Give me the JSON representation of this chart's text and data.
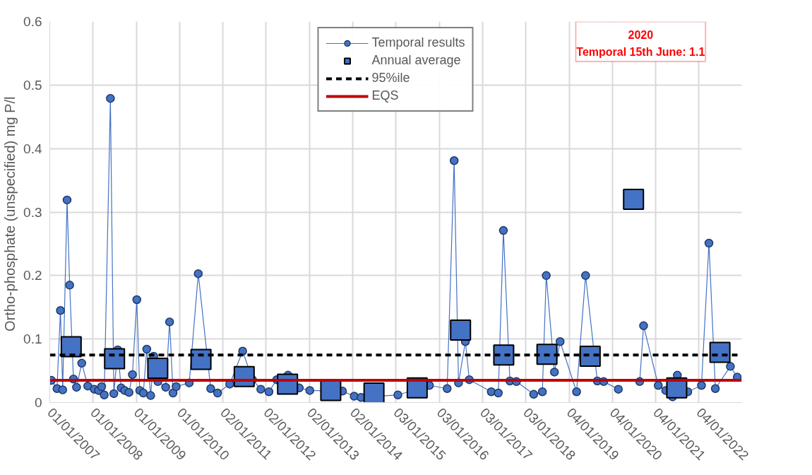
{
  "chart_data": {
    "type": "line",
    "ylabel": "Ortho-phosphate (unspecified)  mg P/l",
    "xlim": [
      "2007-01-01",
      "2023-01-01"
    ],
    "ylim": [
      0,
      0.6
    ],
    "yticks": [
      0,
      0.1,
      0.2,
      0.3,
      0.4,
      0.5,
      0.6
    ],
    "xticks": [
      {
        "value": "2007-01-01",
        "label": "01/01/2007"
      },
      {
        "value": "2008-01-01",
        "label": "01/01/2008"
      },
      {
        "value": "2009-01-01",
        "label": "01/01/2009"
      },
      {
        "value": "2010-01-01",
        "label": "01/01/2010"
      },
      {
        "value": "2011-01-02",
        "label": "02/01/2011"
      },
      {
        "value": "2012-01-02",
        "label": "02/01/2012"
      },
      {
        "value": "2013-01-02",
        "label": "02/01/2013"
      },
      {
        "value": "2014-01-02",
        "label": "02/01/2014"
      },
      {
        "value": "2015-01-03",
        "label": "03/01/2015"
      },
      {
        "value": "2016-01-03",
        "label": "03/01/2016"
      },
      {
        "value": "2017-01-03",
        "label": "03/01/2017"
      },
      {
        "value": "2018-01-03",
        "label": "03/01/2018"
      },
      {
        "value": "2019-01-04",
        "label": "04/01/2019"
      },
      {
        "value": "2020-01-04",
        "label": "04/01/2020"
      },
      {
        "value": "2021-01-04",
        "label": "04/01/2021"
      },
      {
        "value": "2022-01-04",
        "label": "04/01/2022"
      }
    ],
    "grid": true,
    "legend": "top",
    "series": [
      {
        "name": "Temporal results",
        "marker": "circle",
        "color": "#4472c4",
        "x": [
          "2007-01-15",
          "2007-03-03",
          "2007-04-01",
          "2007-04-20",
          "2007-05-27",
          "2007-06-18",
          "2007-07-20",
          "2007-08-15",
          "2007-09-28",
          "2007-11-18",
          "2008-01-12",
          "2008-02-17",
          "2008-03-14",
          "2008-04-05",
          "2008-05-27",
          "2008-06-25",
          "2008-07-28",
          "2008-08-26",
          "2008-09-24",
          "2008-10-31",
          "2008-11-29",
          "2009-01-05",
          "2009-01-30",
          "2009-03-01",
          "2009-03-30",
          "2009-05-02",
          "2009-05-27",
          "2009-07-02",
          "2009-09-06",
          "2009-10-09",
          "2009-11-07",
          "2009-12-03",
          "2010-03-24",
          "2010-06-08",
          "2010-09-21",
          "2010-11-18",
          "2011-03-01",
          "2011-06-18",
          "2011-09-09",
          "2011-11-18",
          "2012-01-26",
          "2012-04-01",
          "2012-07-05",
          "2012-10-08",
          "2013-01-05",
          "2013-10-08",
          "2014-01-15",
          "2014-03-14",
          "2015-01-19",
          "2015-10-12",
          "2016-03-10",
          "2016-05-08",
          "2016-06-14",
          "2016-08-11",
          "2016-09-13",
          "2017-03-18",
          "2017-05-16",
          "2017-06-28",
          "2017-08-22",
          "2017-10-16",
          "2018-03-11",
          "2018-05-23",
          "2018-06-25",
          "2018-09-02",
          "2018-10-20",
          "2019-03-08",
          "2019-05-23",
          "2019-08-30",
          "2019-10-23",
          "2020-02-24",
          "2020-06-15",
          "2020-08-22",
          "2020-09-24",
          "2021-01-26",
          "2021-03-30",
          "2021-05-27",
          "2021-07-06",
          "2021-10-02",
          "2022-01-26",
          "2022-03-30",
          "2022-05-23",
          "2022-09-27",
          "2022-11-24"
        ],
        "values": [
          0.035,
          0.022,
          0.145,
          0.02,
          0.319,
          0.185,
          0.037,
          0.024,
          0.062,
          0.026,
          0.021,
          0.019,
          0.025,
          0.012,
          0.479,
          0.014,
          0.083,
          0.023,
          0.019,
          0.016,
          0.044,
          0.162,
          0.019,
          0.015,
          0.084,
          0.011,
          0.073,
          0.033,
          0.024,
          0.127,
          0.015,
          0.025,
          0.031,
          0.203,
          0.022,
          0.015,
          0.029,
          0.081,
          0.036,
          0.021,
          0.017,
          0.036,
          0.043,
          0.023,
          0.019,
          0.018,
          0.01,
          0.008,
          0.012,
          0.027,
          0.022,
          0.381,
          0.031,
          0.096,
          0.036,
          0.017,
          0.015,
          0.271,
          0.034,
          0.033,
          0.013,
          0.017,
          0.2,
          0.048,
          0.096,
          0.017,
          0.2,
          0.034,
          0.033,
          0.021,
          null,
          0.033,
          0.121,
          0.027,
          0.019,
          0.009,
          0.043,
          0.017,
          0.027,
          0.251,
          0.022,
          0.057,
          0.04
        ]
      },
      {
        "name": "Annual average",
        "type": "scatter",
        "marker": "square",
        "color": "#4472c4",
        "x": [
          "2007-07-01",
          "2008-07-01",
          "2009-07-01",
          "2010-07-01",
          "2011-07-01",
          "2012-07-01",
          "2013-07-01",
          "2014-07-01",
          "2015-07-01",
          "2016-07-01",
          "2017-07-01",
          "2018-07-01",
          "2019-07-01",
          "2020-07-01",
          "2021-07-01",
          "2022-07-01"
        ],
        "values": [
          0.088,
          0.069,
          0.054,
          0.068,
          0.041,
          0.029,
          0.019,
          0.015,
          0.023,
          0.114,
          0.075,
          0.076,
          0.073,
          0.32,
          0.023,
          0.079
        ]
      }
    ],
    "ref_lines": [
      {
        "axis": "y",
        "value": 0.075,
        "label": "95%ile",
        "color": "#000000",
        "line_style": "dashed"
      },
      {
        "axis": "y",
        "value": 0.035,
        "label": "EQS",
        "color": "#c00000",
        "line_style": "solid"
      }
    ],
    "annotations": [
      "2020",
      "Temporal 15th June: 1.1"
    ]
  }
}
